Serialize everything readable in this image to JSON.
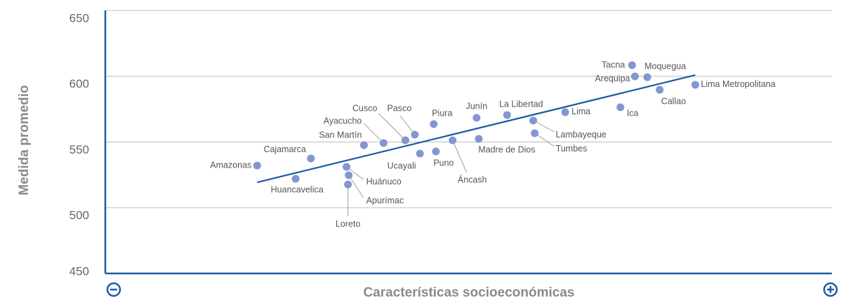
{
  "chart_data": {
    "type": "scatter",
    "ylabel": "Medida promedio",
    "xlabel": "Características socioeconómicas",
    "xlim": [
      0,
      100
    ],
    "ylim": [
      450,
      650
    ],
    "yticks": [
      450,
      500,
      550,
      600,
      650
    ],
    "grid": true,
    "series": [
      {
        "color": "#8197d0",
        "labels": [
          "Tacna",
          "Moquegua",
          "Arequipa",
          "Callao",
          "Lima Metropolitana",
          "Ica",
          "Lima",
          "La Libertad",
          "Lambayeque",
          "Tumbes",
          "Junín",
          "Piura",
          "Madre de Dios",
          "Áncash",
          "Pasco",
          "Cusco",
          "Ayacucho",
          "San Martín",
          "Puno",
          "Ucayali",
          "Cajamarca",
          "Amazonas",
          "Huancavelica",
          "Huánuco",
          "Apurímac",
          "Loreto"
        ],
        "x": [
          72.5,
          74.6,
          72.9,
          76.3,
          81.2,
          70.9,
          63.3,
          55.3,
          58.9,
          59.1,
          51.1,
          45.2,
          51.4,
          47.8,
          42.6,
          41.3,
          38.3,
          35.6,
          45.5,
          43.3,
          28.3,
          20.9,
          26.2,
          33.2,
          33.5,
          33.4
        ],
        "values": [
          608.4,
          599.3,
          599.9,
          589.7,
          593.5,
          576.4,
          572.7,
          570.5,
          566.3,
          556.7,
          568.4,
          563.6,
          552.4,
          551.3,
          555.6,
          551.3,
          549.2,
          547.6,
          542.8,
          541.2,
          537.5,
          532.1,
          522.0,
          531.1,
          524.7,
          517.7
        ]
      }
    ],
    "trendline": {
      "color": "#1f5ba3",
      "x": [
        20.9,
        81.2
      ],
      "values": [
        519.3,
        600.9
      ]
    }
  }
}
